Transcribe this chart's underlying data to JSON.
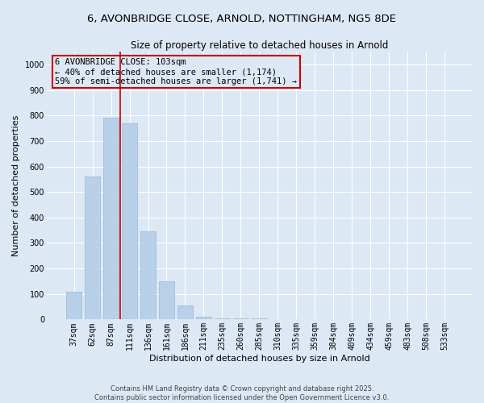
{
  "title_line1": "6, AVONBRIDGE CLOSE, ARNOLD, NOTTINGHAM, NG5 8DE",
  "title_line2": "Size of property relative to detached houses in Arnold",
  "xlabel": "Distribution of detached houses by size in Arnold",
  "ylabel": "Number of detached properties",
  "categories": [
    "37sqm",
    "62sqm",
    "87sqm",
    "111sqm",
    "136sqm",
    "161sqm",
    "186sqm",
    "211sqm",
    "235sqm",
    "260sqm",
    "285sqm",
    "310sqm",
    "335sqm",
    "359sqm",
    "384sqm",
    "409sqm",
    "434sqm",
    "459sqm",
    "483sqm",
    "508sqm",
    "533sqm"
  ],
  "values": [
    110,
    560,
    790,
    770,
    345,
    150,
    55,
    12,
    6,
    4,
    3,
    2,
    2,
    2,
    1,
    1,
    1,
    1,
    1,
    1,
    1
  ],
  "bar_color": "#b8d0e8",
  "bar_edgecolor": "#9ab8d8",
  "vline_x_index": 2.5,
  "vline_color": "#cc0000",
  "annotation_text": "6 AVONBRIDGE CLOSE: 103sqm\n← 40% of detached houses are smaller (1,174)\n59% of semi-detached houses are larger (1,741) →",
  "annotation_box_color": "#cc0000",
  "annotation_fontsize": 7.5,
  "ylim": [
    0,
    1050
  ],
  "yticks": [
    0,
    100,
    200,
    300,
    400,
    500,
    600,
    700,
    800,
    900,
    1000
  ],
  "background_color": "#dce8f4",
  "title_fontsize": 9.5,
  "subtitle_fontsize": 8.5,
  "xlabel_fontsize": 8,
  "ylabel_fontsize": 8,
  "tick_fontsize": 7,
  "footer_line1": "Contains HM Land Registry data © Crown copyright and database right 2025.",
  "footer_line2": "Contains public sector information licensed under the Open Government Licence v3.0."
}
